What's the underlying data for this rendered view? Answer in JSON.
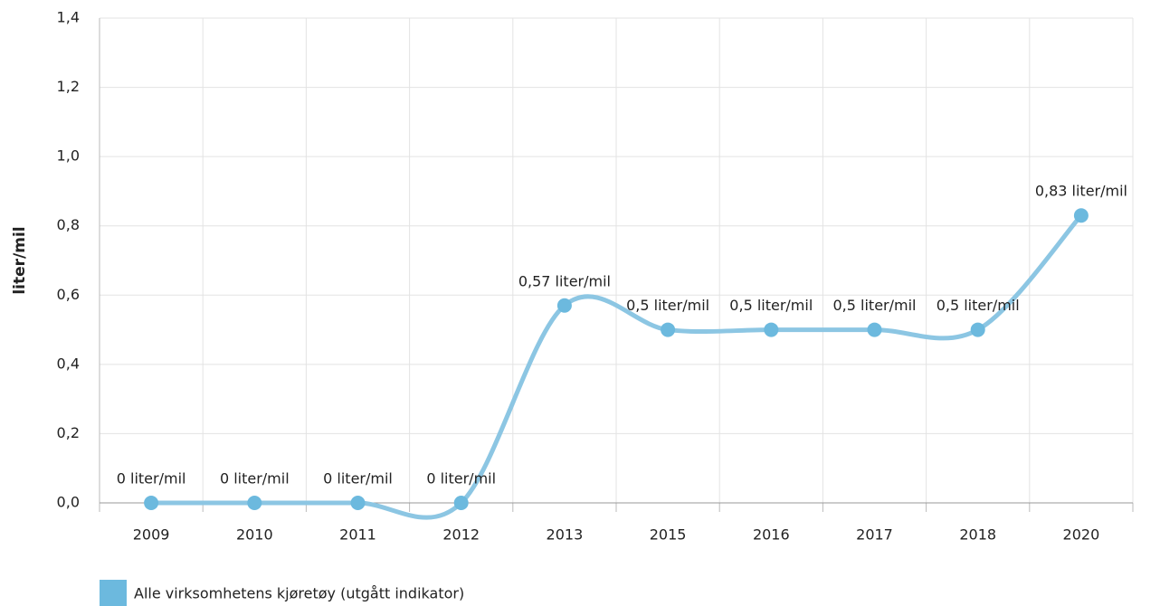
{
  "chart_data": {
    "type": "line",
    "ylabel": "liter/mil",
    "categories": [
      "2009",
      "2010",
      "2011",
      "2012",
      "2013",
      "2015",
      "2016",
      "2017",
      "2018",
      "2020"
    ],
    "series": [
      {
        "name": "Alle virksomhetens kjøretøy (utgått indikator)",
        "color": "#6cb9de",
        "values": [
          0,
          0,
          0,
          0,
          0.57,
          0.5,
          0.5,
          0.5,
          0.5,
          0.83
        ],
        "value_labels": [
          "0 liter/mil",
          "0 liter/mil",
          "0 liter/mil",
          "0 liter/mil",
          "0,57 liter/mil",
          "0,5 liter/mil",
          "0,5 liter/mil",
          "0,5 liter/mil",
          "0,5 liter/mil",
          "0,83 liter/mil"
        ]
      }
    ],
    "ylim": [
      0,
      1.4
    ],
    "yticks": [
      {
        "value": 0,
        "label": "0,0"
      },
      {
        "value": 0.2,
        "label": "0,2"
      },
      {
        "value": 0.4,
        "label": "0,4"
      },
      {
        "value": 0.6,
        "label": "0,6"
      },
      {
        "value": 0.8,
        "label": "0,8"
      },
      {
        "value": 1.0,
        "label": "1,0"
      },
      {
        "value": 1.2,
        "label": "1,2"
      },
      {
        "value": 1.4,
        "label": "1,4"
      }
    ],
    "grid": true
  }
}
